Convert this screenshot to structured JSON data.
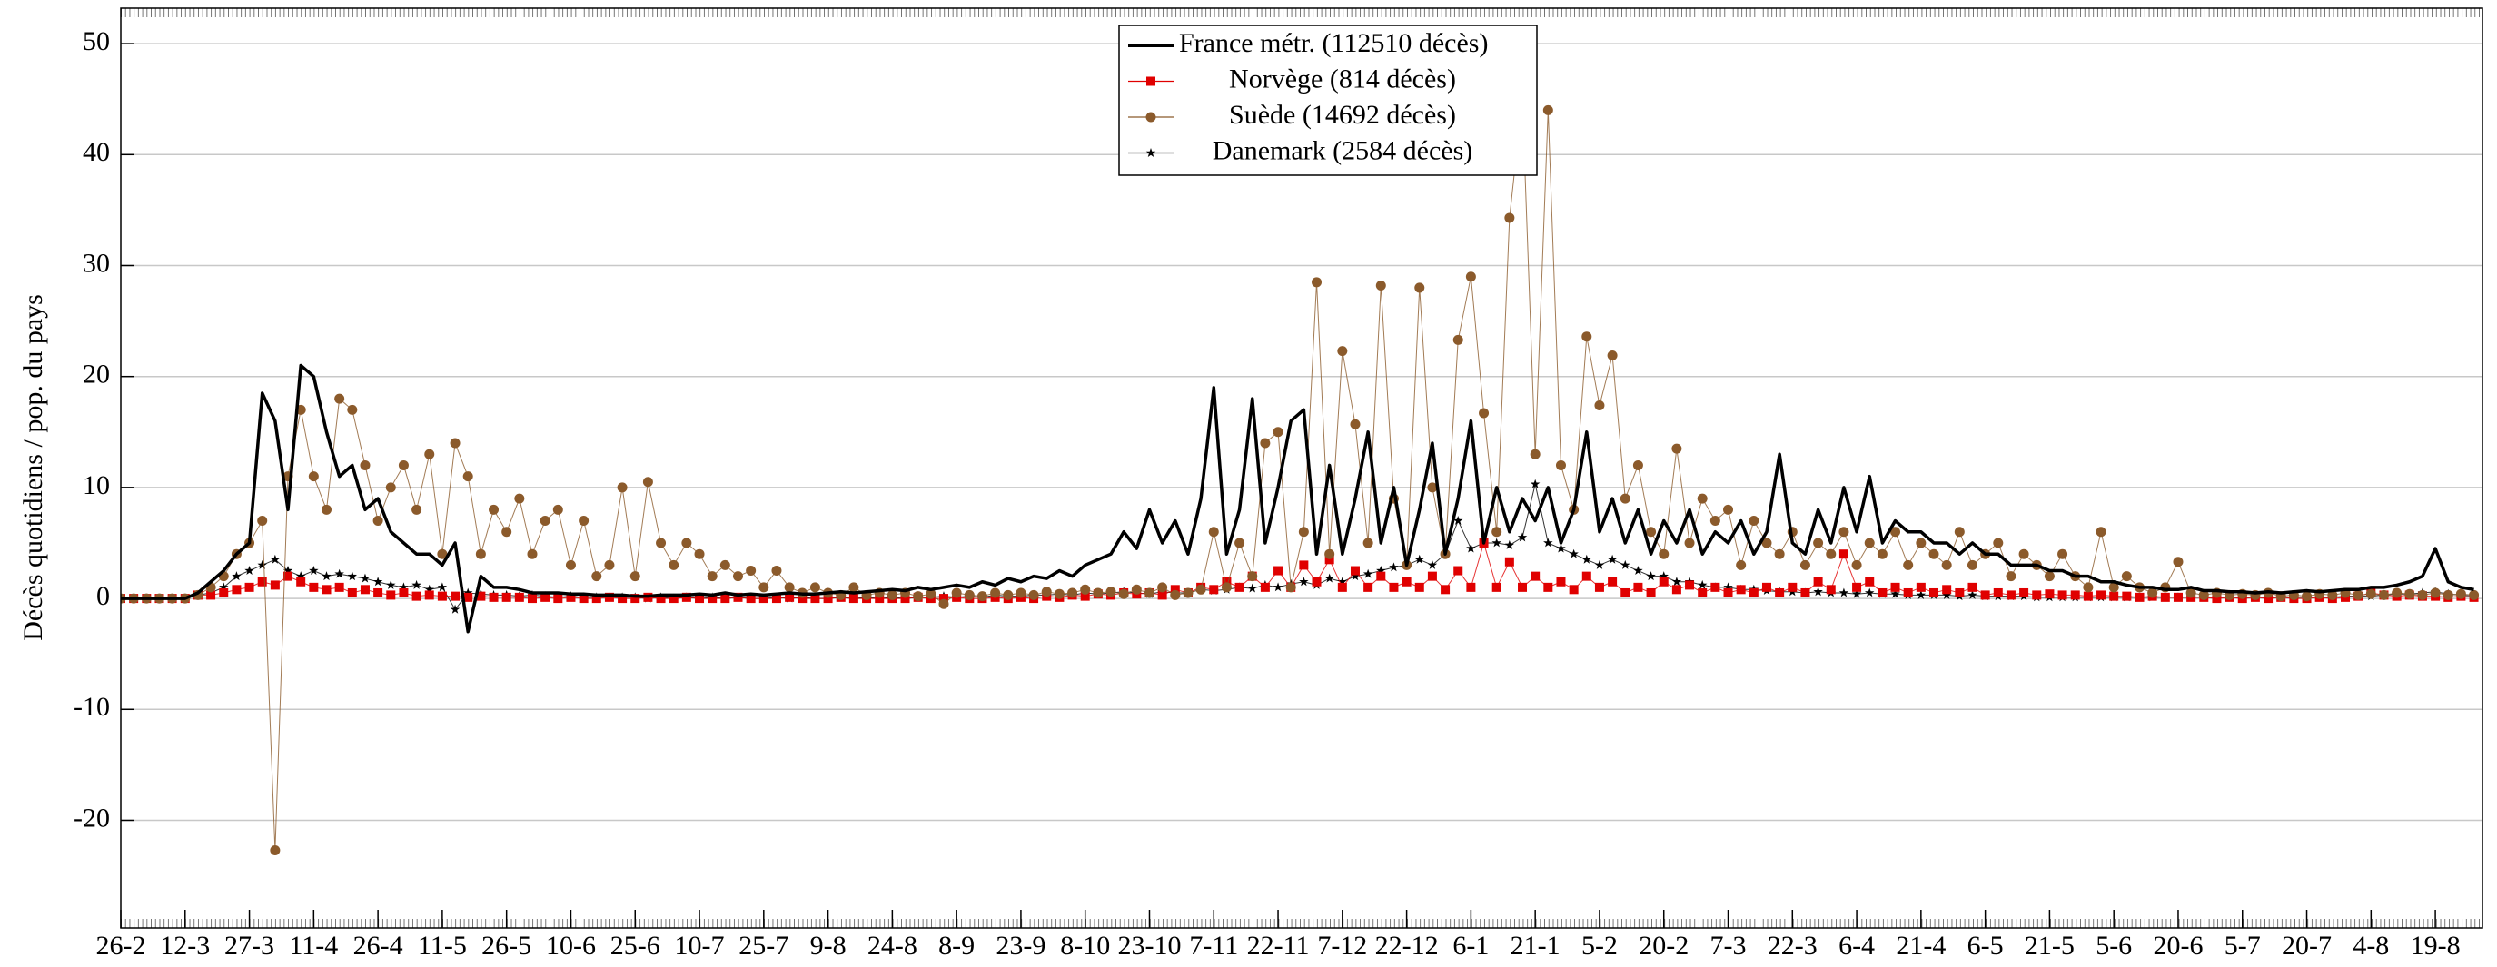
{
  "chart_data": {
    "type": "line",
    "y_label": "Décès quotidiens / pop. du pays",
    "xlim": [
      0,
      551
    ],
    "ylim": [
      -29.7,
      53.2
    ],
    "yticks": [
      -20,
      -10,
      0,
      10,
      20,
      30,
      40,
      50
    ],
    "xticks": [
      {
        "value": 0,
        "label": "26-2"
      },
      {
        "value": 15,
        "label": "12-3"
      },
      {
        "value": 30,
        "label": "27-3"
      },
      {
        "value": 45,
        "label": "11-4"
      },
      {
        "value": 60,
        "label": "26-4"
      },
      {
        "value": 75,
        "label": "11-5"
      },
      {
        "value": 90,
        "label": "26-5"
      },
      {
        "value": 105,
        "label": "10-6"
      },
      {
        "value": 120,
        "label": "25-6"
      },
      {
        "value": 135,
        "label": "10-7"
      },
      {
        "value": 150,
        "label": "25-7"
      },
      {
        "value": 165,
        "label": "9-8"
      },
      {
        "value": 180,
        "label": "24-8"
      },
      {
        "value": 195,
        "label": "8-9"
      },
      {
        "value": 210,
        "label": "23-9"
      },
      {
        "value": 225,
        "label": "8-10"
      },
      {
        "value": 240,
        "label": "23-10"
      },
      {
        "value": 255,
        "label": "7-11"
      },
      {
        "value": 270,
        "label": "22-11"
      },
      {
        "value": 285,
        "label": "7-12"
      },
      {
        "value": 300,
        "label": "22-12"
      },
      {
        "value": 315,
        "label": "6-1"
      },
      {
        "value": 330,
        "label": "21-1"
      },
      {
        "value": 345,
        "label": "5-2"
      },
      {
        "value": 360,
        "label": "20-2"
      },
      {
        "value": 375,
        "label": "7-3"
      },
      {
        "value": 390,
        "label": "22-3"
      },
      {
        "value": 405,
        "label": "6-4"
      },
      {
        "value": 420,
        "label": "21-4"
      },
      {
        "value": 435,
        "label": "6-5"
      },
      {
        "value": 450,
        "label": "21-5"
      },
      {
        "value": 465,
        "label": "5-6"
      },
      {
        "value": 480,
        "label": "20-6"
      },
      {
        "value": 495,
        "label": "5-7"
      },
      {
        "value": 510,
        "label": "20-7"
      },
      {
        "value": 525,
        "label": "4-8"
      },
      {
        "value": 540,
        "label": "19-8"
      }
    ],
    "grid": true,
    "legend": "top-center",
    "x": [
      0,
      3,
      6,
      9,
      12,
      15,
      18,
      21,
      24,
      27,
      30,
      33,
      36,
      39,
      42,
      45,
      48,
      51,
      54,
      57,
      60,
      63,
      66,
      69,
      72,
      75,
      78,
      81,
      84,
      87,
      90,
      93,
      96,
      99,
      102,
      105,
      108,
      111,
      114,
      117,
      120,
      123,
      126,
      129,
      132,
      135,
      138,
      141,
      144,
      147,
      150,
      153,
      156,
      159,
      162,
      165,
      168,
      171,
      174,
      177,
      180,
      183,
      186,
      189,
      192,
      195,
      198,
      201,
      204,
      207,
      210,
      213,
      216,
      219,
      222,
      225,
      228,
      231,
      234,
      237,
      240,
      243,
      246,
      249,
      252,
      255,
      258,
      261,
      264,
      267,
      270,
      273,
      276,
      279,
      282,
      285,
      288,
      291,
      294,
      297,
      300,
      303,
      306,
      309,
      312,
      315,
      318,
      321,
      324,
      327,
      330,
      333,
      336,
      339,
      342,
      345,
      348,
      351,
      354,
      357,
      360,
      363,
      366,
      369,
      372,
      375,
      378,
      381,
      384,
      387,
      390,
      393,
      396,
      399,
      402,
      405,
      408,
      411,
      414,
      417,
      420,
      423,
      426,
      429,
      432,
      435,
      438,
      441,
      444,
      447,
      450,
      453,
      456,
      459,
      462,
      465,
      468,
      471,
      474,
      477,
      480,
      483,
      486,
      489,
      492,
      495,
      498,
      501,
      504,
      507,
      510,
      513,
      516,
      519,
      522,
      525,
      528,
      531,
      534,
      537,
      540,
      543,
      546,
      549
    ],
    "series": [
      {
        "name": "France métr. (112510 décès)",
        "color": "#000000",
        "marker": "none",
        "width": 3.5,
        "values": [
          0,
          0,
          0,
          0,
          0,
          0,
          0.5,
          1.5,
          2.5,
          4,
          5,
          18.5,
          16,
          8,
          21,
          20,
          15,
          11,
          12,
          8,
          9,
          6,
          5,
          4,
          4,
          3,
          5,
          -3,
          2,
          1,
          1,
          0.8,
          0.5,
          0.5,
          0.5,
          0.4,
          0.4,
          0.3,
          0.3,
          0.3,
          0.2,
          0.2,
          0.3,
          0.3,
          0.3,
          0.4,
          0.3,
          0.5,
          0.3,
          0.4,
          0.3,
          0.4,
          0.5,
          0.4,
          0.4,
          0.5,
          0.6,
          0.5,
          0.6,
          0.7,
          0.8,
          0.7,
          1,
          0.8,
          1,
          1.2,
          1,
          1.5,
          1.2,
          1.8,
          1.5,
          2,
          1.8,
          2.5,
          2,
          3,
          3.5,
          4,
          6,
          4.5,
          8,
          5,
          7,
          4,
          9,
          19,
          4,
          8,
          18,
          5,
          10,
          16,
          17,
          4,
          12,
          4,
          9,
          15,
          5,
          10,
          3,
          8,
          14,
          4,
          9,
          16,
          5,
          10,
          6,
          9,
          7,
          10,
          5,
          8,
          15,
          6,
          9,
          5,
          8,
          4,
          7,
          5,
          8,
          4,
          6,
          5,
          7,
          4,
          6,
          13,
          5,
          4,
          8,
          5,
          10,
          6,
          11,
          5,
          7,
          6,
          6,
          5,
          5,
          4,
          5,
          4,
          4,
          3,
          3,
          3,
          2.5,
          2.5,
          2,
          2,
          1.5,
          1.5,
          1.2,
          1,
          1,
          0.8,
          0.8,
          1,
          0.7,
          0.7,
          0.6,
          0.6,
          0.5,
          0.6,
          0.5,
          0.6,
          0.7,
          0.6,
          0.7,
          0.8,
          0.8,
          1,
          1,
          1.2,
          1.5,
          2,
          4.5,
          1.5,
          1,
          0.8
        ]
      },
      {
        "name": "Norvège (814 décès)",
        "color": "#e00000",
        "marker": "square",
        "width": 1,
        "values": [
          0,
          0,
          0,
          0,
          0,
          0,
          0.3,
          0.3,
          0.5,
          0.8,
          1,
          1.5,
          1.2,
          2,
          1.5,
          1,
          0.8,
          1,
          0.5,
          0.8,
          0.5,
          0.3,
          0.5,
          0.2,
          0.3,
          0.2,
          0.2,
          0.1,
          0.2,
          0.1,
          0.1,
          0.1,
          0,
          0.1,
          0,
          0.1,
          0,
          0,
          0.1,
          0,
          0,
          0.1,
          0,
          0,
          0.1,
          0,
          0,
          0,
          0.1,
          0,
          0,
          0,
          0.1,
          0,
          0,
          0,
          0.1,
          0,
          0,
          0,
          0,
          0,
          0.1,
          0,
          0,
          0.1,
          0,
          0,
          0.1,
          0,
          0.1,
          0,
          0.2,
          0.1,
          0.3,
          0.2,
          0.4,
          0.3,
          0.5,
          0.4,
          0.5,
          0.3,
          0.8,
          0.5,
          1,
          0.8,
          1.5,
          1,
          2,
          1,
          2.5,
          1,
          3,
          1.5,
          3.5,
          1,
          2.5,
          1,
          2,
          1,
          1.5,
          1,
          2,
          0.8,
          2.5,
          1,
          5,
          1,
          3.3,
          1,
          2,
          1,
          1.5,
          0.8,
          2,
          1,
          1.5,
          0.5,
          1,
          0.5,
          1.5,
          0.8,
          1.2,
          0.5,
          1,
          0.5,
          0.8,
          0.5,
          1,
          0.5,
          1,
          0.5,
          1.5,
          0.8,
          4,
          1,
          1.5,
          0.5,
          1,
          0.5,
          1,
          0.5,
          0.8,
          0.5,
          1,
          0.3,
          0.5,
          0.3,
          0.5,
          0.3,
          0.4,
          0.3,
          0.3,
          0.2,
          0.3,
          0.2,
          0.2,
          0.1,
          0.2,
          0.1,
          0.1,
          0.1,
          0.1,
          0,
          0.1,
          0,
          0.1,
          0,
          0.1,
          0,
          0,
          0.1,
          0,
          0.1,
          0.2,
          0.5,
          0.3,
          0.2,
          0.3,
          0.2,
          0.2,
          0.1,
          0.2,
          0.1
        ]
      },
      {
        "name": "Suède (14692 décès)",
        "color": "#8b5a2b",
        "marker": "circle",
        "width": 1,
        "values": [
          0,
          0,
          0,
          0,
          0,
          0,
          0.3,
          1,
          2,
          4,
          5,
          7,
          -22.7,
          11,
          17,
          11,
          8,
          18,
          17,
          12,
          7,
          10,
          12,
          8,
          13,
          4,
          14,
          11,
          4,
          8,
          6,
          9,
          4,
          7,
          8,
          3,
          7,
          2,
          3,
          10,
          2,
          10.5,
          5,
          3,
          5,
          4,
          2,
          3,
          2,
          2.5,
          1,
          2.5,
          1,
          0.5,
          1,
          0.5,
          0.3,
          1,
          0.3,
          0.5,
          0.3,
          0.5,
          0.2,
          0.4,
          -0.5,
          0.5,
          0.3,
          0.2,
          0.5,
          0.3,
          0.5,
          0.3,
          0.6,
          0.4,
          0.5,
          0.8,
          0.5,
          0.6,
          0.4,
          0.8,
          0.5,
          1,
          0.3,
          0.5,
          0.8,
          6,
          1,
          5,
          2,
          14,
          15,
          1,
          6,
          28.5,
          4,
          22.3,
          15.7,
          5,
          28.2,
          9,
          3,
          28,
          10,
          4,
          23.3,
          29,
          16.7,
          6,
          34.3,
          45,
          13,
          44,
          12,
          8,
          23.6,
          17.4,
          21.9,
          9,
          12,
          6,
          4,
          13.5,
          5,
          9,
          7,
          8,
          3,
          7,
          5,
          4,
          6,
          3,
          5,
          4,
          6,
          3,
          5,
          4,
          6,
          3,
          5,
          4,
          3,
          6,
          3,
          4,
          5,
          2,
          4,
          3,
          2,
          4,
          2,
          1,
          6,
          1,
          2,
          1,
          0.5,
          1,
          3.3,
          0.5,
          0.3,
          0.5,
          0.3,
          0.4,
          0.3,
          0.5,
          0.2,
          0.3,
          0.2,
          0.4,
          0.3,
          0.5,
          0.3,
          0.4,
          0.3,
          0.5,
          0.4,
          0.3,
          0.5,
          0.3,
          0.4,
          0.3
        ]
      },
      {
        "name": "Danemark (2584 décès)",
        "color": "#000000",
        "marker": "star",
        "width": 1,
        "values": [
          0,
          0,
          0,
          0,
          0,
          0,
          0.3,
          0.5,
          1,
          2,
          2.5,
          3,
          3.5,
          2.5,
          2,
          2.5,
          2,
          2.2,
          2,
          1.8,
          1.5,
          1.2,
          1,
          1.2,
          0.8,
          1,
          -1,
          0.5,
          0.4,
          0.3,
          0.3,
          0.2,
          0.3,
          0.2,
          0.1,
          0.2,
          0.1,
          0.1,
          0.1,
          0.1,
          0.1,
          0,
          0.1,
          0,
          0.1,
          0,
          0.1,
          0,
          0.1,
          0,
          0,
          0.1,
          0,
          0.1,
          0,
          0,
          0.1,
          0,
          0.1,
          0,
          0.1,
          0,
          0.1,
          0.1,
          0.2,
          0.1,
          0.2,
          0.1,
          0.3,
          0.2,
          0.2,
          0.3,
          0.3,
          0.4,
          0.3,
          0.5,
          0.4,
          0.5,
          0.6,
          0.5,
          0.4,
          0.6,
          0.5,
          0.5,
          0.8,
          0.7,
          0.8,
          1,
          0.9,
          1.2,
          1,
          1.3,
          1.5,
          1.2,
          1.8,
          1.5,
          2,
          2.2,
          2.5,
          2.8,
          3,
          3.5,
          3,
          4,
          7,
          4.5,
          5,
          5,
          4.8,
          5.5,
          10.3,
          5,
          4.5,
          4,
          3.5,
          3,
          3.5,
          3,
          2.5,
          2,
          2,
          1.5,
          1.5,
          1.2,
          1,
          1,
          0.8,
          0.8,
          0.7,
          0.6,
          0.6,
          0.5,
          0.6,
          0.5,
          0.5,
          0.4,
          0.5,
          0.4,
          0.4,
          0.3,
          0.3,
          0.3,
          0.3,
          0.2,
          0.3,
          0.2,
          0.2,
          0.2,
          0.2,
          0.1,
          0.1,
          0.1,
          0.1,
          0.1,
          0.1,
          0.1,
          0.1,
          0.1,
          0.1,
          0.1,
          0.1,
          0.1,
          0.1,
          0.1,
          0.1,
          0.1,
          0.1,
          0.1,
          0.1,
          0.1,
          0.1,
          0.1,
          0.1,
          0.2,
          0.2,
          0.2,
          0.3,
          0.4,
          0.4,
          0.5,
          0.6,
          0.4,
          0.3,
          0.2
        ]
      }
    ]
  }
}
